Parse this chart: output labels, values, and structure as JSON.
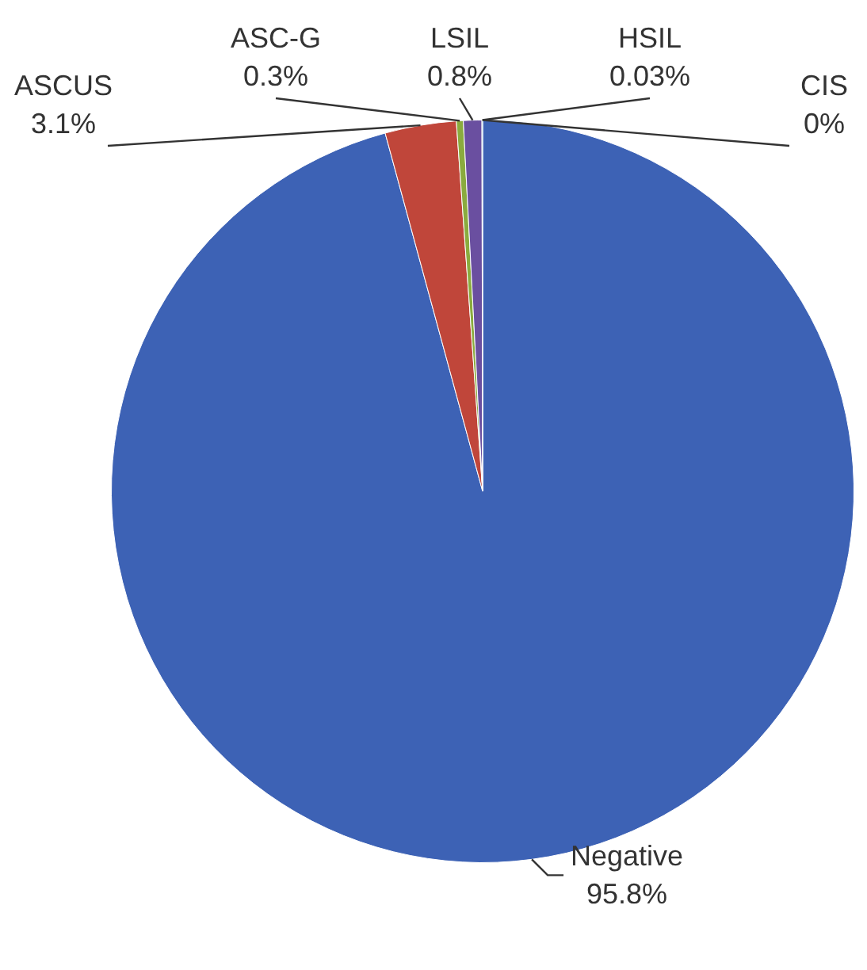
{
  "chart_data": {
    "type": "pie",
    "categories": [
      "Negative",
      "ASCUS",
      "ASC-G",
      "LSIL",
      "HSIL",
      "CIS"
    ],
    "values": [
      95.8,
      3.1,
      0.3,
      0.8,
      0.03,
      0
    ],
    "colors": [
      "#3d62b5",
      "#c0463a",
      "#8aab3e",
      "#6a4fa0",
      "#3aa0c0",
      "#f08a30"
    ],
    "value_labels": [
      "95.8%",
      "3.1%",
      "0.3%",
      "0.8%",
      "0.03%",
      "0%"
    ],
    "legend": false
  }
}
